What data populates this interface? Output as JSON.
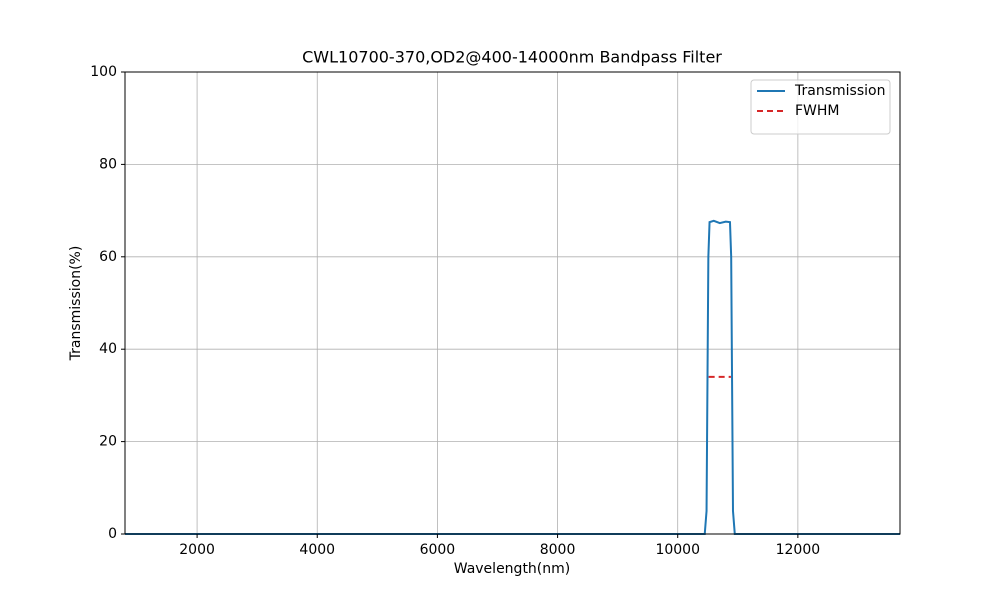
{
  "chart_data": {
    "type": "line",
    "title": "CWL10700-370,OD2@400-14000nm Bandpass Filter",
    "x_label": "Wavelength(nm)",
    "y_label": "Transmission(%)",
    "xlim": [
      800,
      13700
    ],
    "ylim": [
      0,
      100
    ],
    "xticks": [
      2000,
      4000,
      6000,
      8000,
      10000,
      12000
    ],
    "yticks": [
      0,
      20,
      40,
      60,
      80,
      100
    ],
    "grid": true,
    "legend": "upper right",
    "series": [
      {
        "name": "Transmission",
        "color": "#1f77b4",
        "linestyle": "solid",
        "x": [
          800,
          10450,
          10480,
          10510,
          10530,
          10600,
          10700,
          10800,
          10870,
          10890,
          10920,
          10950,
          13700
        ],
        "values": [
          0,
          0,
          5,
          60,
          67.5,
          67.8,
          67.3,
          67.6,
          67.5,
          60,
          5,
          0,
          0
        ]
      },
      {
        "name": "FWHM",
        "color": "#d62728",
        "linestyle": "dashed",
        "x": [
          10515,
          10885
        ],
        "values": [
          34,
          34
        ]
      }
    ]
  }
}
